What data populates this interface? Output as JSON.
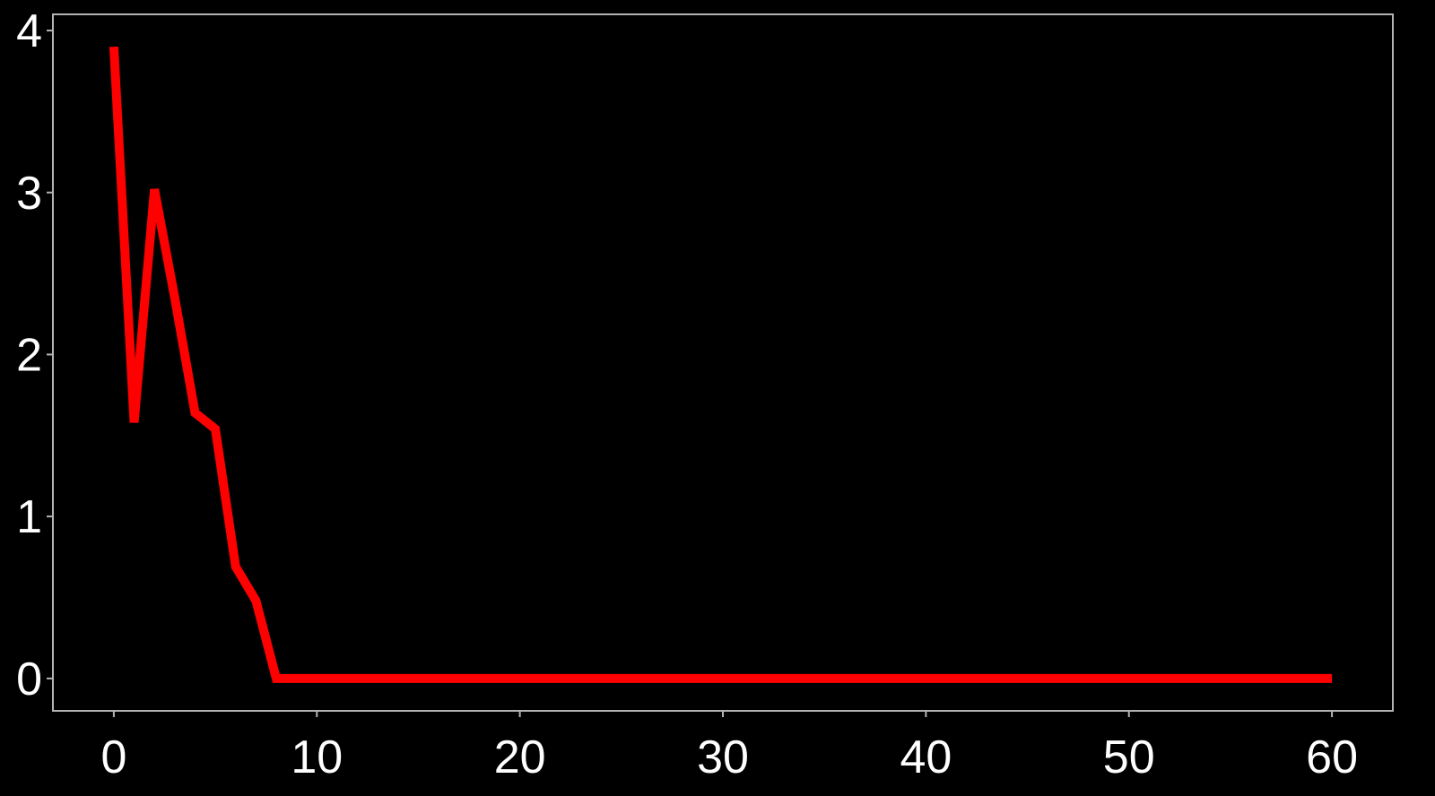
{
  "chart_data": {
    "type": "line",
    "title": "",
    "xlabel": "",
    "ylabel": "",
    "xlim": [
      -3,
      63
    ],
    "ylim": [
      -0.2,
      4.1
    ],
    "x_ticks": [
      0,
      10,
      20,
      30,
      40,
      50,
      60
    ],
    "y_ticks": [
      0,
      1,
      2,
      3,
      4
    ],
    "x_tick_labels": [
      "0",
      "10",
      "20",
      "30",
      "40",
      "50",
      "60"
    ],
    "y_tick_labels": [
      "0",
      "1",
      "2",
      "3",
      "4"
    ],
    "grid": false,
    "series": [
      {
        "color": "#ff0000",
        "x": [
          0,
          1,
          2,
          3,
          4,
          5,
          6,
          7,
          8,
          9,
          10,
          11,
          12,
          13,
          14,
          15,
          16,
          17,
          18,
          19,
          20,
          21,
          22,
          23,
          24,
          25,
          26,
          27,
          28,
          29,
          30,
          31,
          32,
          33,
          34,
          35,
          36,
          37,
          38,
          39,
          40,
          41,
          42,
          43,
          44,
          45,
          46,
          47,
          48,
          49,
          50,
          51,
          52,
          53,
          54,
          55,
          56,
          57,
          58,
          59,
          60
        ],
        "y": [
          3.9,
          1.58,
          3.02,
          2.35,
          1.64,
          1.54,
          0.69,
          0.48,
          0,
          0,
          0,
          0,
          0,
          0,
          0,
          0,
          0,
          0,
          0,
          0,
          0,
          0,
          0,
          0,
          0,
          0,
          0,
          0,
          0,
          0,
          0,
          0,
          0,
          0,
          0,
          0,
          0,
          0,
          0,
          0,
          0,
          0,
          0,
          0,
          0,
          0,
          0,
          0,
          0,
          0,
          0,
          0,
          0,
          0,
          0,
          0,
          0,
          0,
          0,
          0,
          0
        ]
      }
    ]
  },
  "colors": {
    "background": "#000000",
    "axes_frame": "#b3b3b3",
    "tick_text": "#ffffff",
    "line": "#ff0000"
  }
}
